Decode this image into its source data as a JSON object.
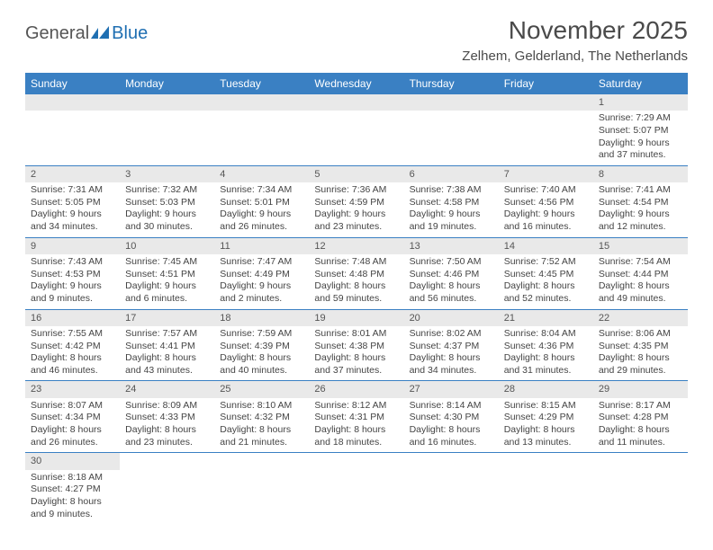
{
  "logo": {
    "general": "General",
    "blue": "Blue"
  },
  "title": "November 2025",
  "location": "Zelhem, Gelderland, The Netherlands",
  "weekdays": [
    "Sunday",
    "Monday",
    "Tuesday",
    "Wednesday",
    "Thursday",
    "Friday",
    "Saturday"
  ],
  "colors": {
    "header_bg": "#3a80c3",
    "header_text": "#ffffff",
    "daynum_bg": "#e9e9e9",
    "row_border": "#3a80c3",
    "text": "#444444"
  },
  "fonts": {
    "title_size": 28,
    "location_size": 15,
    "weekday_size": 12,
    "cell_size": 10.5
  },
  "weeks": [
    [
      null,
      null,
      null,
      null,
      null,
      null,
      {
        "n": "1",
        "sr": "7:29 AM",
        "ss": "5:07 PM",
        "dh": "9",
        "dm": "37"
      }
    ],
    [
      {
        "n": "2",
        "sr": "7:31 AM",
        "ss": "5:05 PM",
        "dh": "9",
        "dm": "34"
      },
      {
        "n": "3",
        "sr": "7:32 AM",
        "ss": "5:03 PM",
        "dh": "9",
        "dm": "30"
      },
      {
        "n": "4",
        "sr": "7:34 AM",
        "ss": "5:01 PM",
        "dh": "9",
        "dm": "26"
      },
      {
        "n": "5",
        "sr": "7:36 AM",
        "ss": "4:59 PM",
        "dh": "9",
        "dm": "23"
      },
      {
        "n": "6",
        "sr": "7:38 AM",
        "ss": "4:58 PM",
        "dh": "9",
        "dm": "19"
      },
      {
        "n": "7",
        "sr": "7:40 AM",
        "ss": "4:56 PM",
        "dh": "9",
        "dm": "16"
      },
      {
        "n": "8",
        "sr": "7:41 AM",
        "ss": "4:54 PM",
        "dh": "9",
        "dm": "12"
      }
    ],
    [
      {
        "n": "9",
        "sr": "7:43 AM",
        "ss": "4:53 PM",
        "dh": "9",
        "dm": "9"
      },
      {
        "n": "10",
        "sr": "7:45 AM",
        "ss": "4:51 PM",
        "dh": "9",
        "dm": "6"
      },
      {
        "n": "11",
        "sr": "7:47 AM",
        "ss": "4:49 PM",
        "dh": "9",
        "dm": "2"
      },
      {
        "n": "12",
        "sr": "7:48 AM",
        "ss": "4:48 PM",
        "dh": "8",
        "dm": "59"
      },
      {
        "n": "13",
        "sr": "7:50 AM",
        "ss": "4:46 PM",
        "dh": "8",
        "dm": "56"
      },
      {
        "n": "14",
        "sr": "7:52 AM",
        "ss": "4:45 PM",
        "dh": "8",
        "dm": "52"
      },
      {
        "n": "15",
        "sr": "7:54 AM",
        "ss": "4:44 PM",
        "dh": "8",
        "dm": "49"
      }
    ],
    [
      {
        "n": "16",
        "sr": "7:55 AM",
        "ss": "4:42 PM",
        "dh": "8",
        "dm": "46"
      },
      {
        "n": "17",
        "sr": "7:57 AM",
        "ss": "4:41 PM",
        "dh": "8",
        "dm": "43"
      },
      {
        "n": "18",
        "sr": "7:59 AM",
        "ss": "4:39 PM",
        "dh": "8",
        "dm": "40"
      },
      {
        "n": "19",
        "sr": "8:01 AM",
        "ss": "4:38 PM",
        "dh": "8",
        "dm": "37"
      },
      {
        "n": "20",
        "sr": "8:02 AM",
        "ss": "4:37 PM",
        "dh": "8",
        "dm": "34"
      },
      {
        "n": "21",
        "sr": "8:04 AM",
        "ss": "4:36 PM",
        "dh": "8",
        "dm": "31"
      },
      {
        "n": "22",
        "sr": "8:06 AM",
        "ss": "4:35 PM",
        "dh": "8",
        "dm": "29"
      }
    ],
    [
      {
        "n": "23",
        "sr": "8:07 AM",
        "ss": "4:34 PM",
        "dh": "8",
        "dm": "26"
      },
      {
        "n": "24",
        "sr": "8:09 AM",
        "ss": "4:33 PM",
        "dh": "8",
        "dm": "23"
      },
      {
        "n": "25",
        "sr": "8:10 AM",
        "ss": "4:32 PM",
        "dh": "8",
        "dm": "21"
      },
      {
        "n": "26",
        "sr": "8:12 AM",
        "ss": "4:31 PM",
        "dh": "8",
        "dm": "18"
      },
      {
        "n": "27",
        "sr": "8:14 AM",
        "ss": "4:30 PM",
        "dh": "8",
        "dm": "16"
      },
      {
        "n": "28",
        "sr": "8:15 AM",
        "ss": "4:29 PM",
        "dh": "8",
        "dm": "13"
      },
      {
        "n": "29",
        "sr": "8:17 AM",
        "ss": "4:28 PM",
        "dh": "8",
        "dm": "11"
      }
    ],
    [
      {
        "n": "30",
        "sr": "8:18 AM",
        "ss": "4:27 PM",
        "dh": "8",
        "dm": "9"
      },
      null,
      null,
      null,
      null,
      null,
      null
    ]
  ],
  "labels": {
    "sunrise": "Sunrise: ",
    "sunset": "Sunset: ",
    "daylight1": "Daylight: ",
    "daylight_hours": " hours",
    "daylight_and": "and ",
    "daylight_min": " minutes."
  }
}
